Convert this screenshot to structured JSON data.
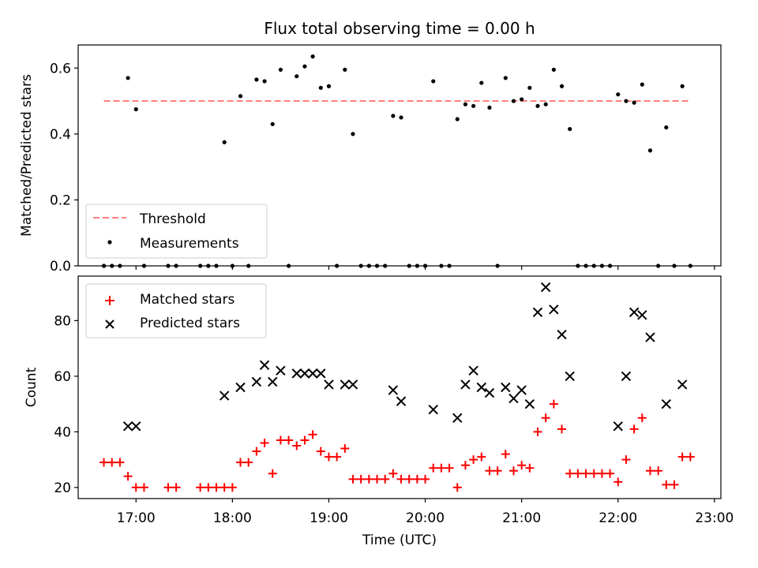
{
  "figure": {
    "title": "Flux total observing time = 0.00 h"
  },
  "chart_data": [
    {
      "type": "scatter",
      "ylabel": "Matched/Predicted stars",
      "xlim": [
        "16:24",
        "23:04"
      ],
      "ylim": [
        0,
        0.67
      ],
      "yticks": [
        "0.0",
        "0.2",
        "0.4",
        "0.6"
      ],
      "legend": {
        "placement": "lower-left",
        "entries": [
          "Threshold",
          "Measurements"
        ]
      },
      "threshold": {
        "name": "Threshold",
        "value": 0.5,
        "x_start": "16:40",
        "x_end": "22:45",
        "color": "#ff7f7f",
        "style": "dashed"
      },
      "series": [
        {
          "name": "Measurements",
          "color": "#000000",
          "marker": "dot",
          "points": [
            [
              "16:40",
              0
            ],
            [
              "16:45",
              0
            ],
            [
              "16:50",
              0
            ],
            [
              "16:55",
              0.57
            ],
            [
              "17:00",
              0.475
            ],
            [
              "17:05",
              0
            ],
            [
              "17:20",
              0
            ],
            [
              "17:25",
              0
            ],
            [
              "17:40",
              0
            ],
            [
              "17:45",
              0
            ],
            [
              "17:50",
              0
            ],
            [
              "17:55",
              0.375
            ],
            [
              "18:00",
              0
            ],
            [
              "18:05",
              0.515
            ],
            [
              "18:10",
              0
            ],
            [
              "18:15",
              0.565
            ],
            [
              "18:20",
              0.56
            ],
            [
              "18:25",
              0.43
            ],
            [
              "18:30",
              0.595
            ],
            [
              "18:35",
              0
            ],
            [
              "18:40",
              0.575
            ],
            [
              "18:45",
              0.605
            ],
            [
              "18:50",
              0.635
            ],
            [
              "18:55",
              0.54
            ],
            [
              "19:00",
              0.545
            ],
            [
              "19:05",
              0
            ],
            [
              "19:10",
              0.595
            ],
            [
              "19:15",
              0.4
            ],
            [
              "19:20",
              0
            ],
            [
              "19:25",
              0
            ],
            [
              "19:30",
              0
            ],
            [
              "19:35",
              0
            ],
            [
              "19:40",
              0.455
            ],
            [
              "19:45",
              0.45
            ],
            [
              "19:50",
              0
            ],
            [
              "19:55",
              0
            ],
            [
              "20:00",
              0
            ],
            [
              "20:05",
              0.56
            ],
            [
              "20:10",
              0
            ],
            [
              "20:15",
              0
            ],
            [
              "20:20",
              0.445
            ],
            [
              "20:25",
              0.49
            ],
            [
              "20:30",
              0.485
            ],
            [
              "20:35",
              0.555
            ],
            [
              "20:40",
              0.48
            ],
            [
              "20:45",
              0
            ],
            [
              "20:50",
              0.57
            ],
            [
              "20:55",
              0.5
            ],
            [
              "21:00",
              0.505
            ],
            [
              "21:05",
              0.54
            ],
            [
              "21:10",
              0.485
            ],
            [
              "21:15",
              0.49
            ],
            [
              "21:20",
              0.595
            ],
            [
              "21:25",
              0.545
            ],
            [
              "21:30",
              0.415
            ],
            [
              "21:35",
              0
            ],
            [
              "21:40",
              0
            ],
            [
              "21:45",
              0
            ],
            [
              "21:50",
              0
            ],
            [
              "21:55",
              0
            ],
            [
              "22:00",
              0.52
            ],
            [
              "22:05",
              0.5
            ],
            [
              "22:10",
              0.495
            ],
            [
              "22:15",
              0.55
            ],
            [
              "22:20",
              0.35
            ],
            [
              "22:25",
              0
            ],
            [
              "22:30",
              0.42
            ],
            [
              "22:35",
              0
            ],
            [
              "22:40",
              0.545
            ],
            [
              "22:45",
              0
            ]
          ]
        }
      ]
    },
    {
      "type": "scatter",
      "xlabel": "Time (UTC)",
      "ylabel": "Count",
      "xlim": [
        "16:24",
        "23:04"
      ],
      "ylim": [
        16,
        96
      ],
      "xticks": [
        "17:00",
        "18:00",
        "19:00",
        "20:00",
        "21:00",
        "22:00",
        "23:00"
      ],
      "yticks": [
        "20",
        "40",
        "60",
        "80"
      ],
      "legend": {
        "placement": "upper-left",
        "entries": [
          "Matched stars",
          "Predicted stars"
        ]
      },
      "series": [
        {
          "name": "Matched stars",
          "color": "#ff0000",
          "marker": "plus",
          "points": [
            [
              "16:40",
              29
            ],
            [
              "16:45",
              29
            ],
            [
              "16:50",
              29
            ],
            [
              "16:55",
              24
            ],
            [
              "17:00",
              20
            ],
            [
              "17:05",
              20
            ],
            [
              "17:20",
              20
            ],
            [
              "17:25",
              20
            ],
            [
              "17:40",
              20
            ],
            [
              "17:45",
              20
            ],
            [
              "17:50",
              20
            ],
            [
              "17:55",
              20
            ],
            [
              "18:00",
              20
            ],
            [
              "18:05",
              29
            ],
            [
              "18:10",
              29
            ],
            [
              "18:15",
              33
            ],
            [
              "18:20",
              36
            ],
            [
              "18:25",
              25
            ],
            [
              "18:30",
              37
            ],
            [
              "18:35",
              37
            ],
            [
              "18:40",
              35
            ],
            [
              "18:45",
              37
            ],
            [
              "18:50",
              39
            ],
            [
              "18:55",
              33
            ],
            [
              "19:00",
              31
            ],
            [
              "19:05",
              31
            ],
            [
              "19:10",
              34
            ],
            [
              "19:15",
              23
            ],
            [
              "19:20",
              23
            ],
            [
              "19:25",
              23
            ],
            [
              "19:30",
              23
            ],
            [
              "19:35",
              23
            ],
            [
              "19:40",
              25
            ],
            [
              "19:45",
              23
            ],
            [
              "19:50",
              23
            ],
            [
              "19:55",
              23
            ],
            [
              "20:00",
              23
            ],
            [
              "20:05",
              27
            ],
            [
              "20:10",
              27
            ],
            [
              "20:15",
              27
            ],
            [
              "20:20",
              20
            ],
            [
              "20:25",
              28
            ],
            [
              "20:30",
              30
            ],
            [
              "20:35",
              31
            ],
            [
              "20:40",
              26
            ],
            [
              "20:45",
              26
            ],
            [
              "20:50",
              32
            ],
            [
              "20:55",
              26
            ],
            [
              "21:00",
              28
            ],
            [
              "21:05",
              27
            ],
            [
              "21:10",
              40
            ],
            [
              "21:15",
              45
            ],
            [
              "21:20",
              50
            ],
            [
              "21:25",
              41
            ],
            [
              "21:30",
              25
            ],
            [
              "21:35",
              25
            ],
            [
              "21:40",
              25
            ],
            [
              "21:45",
              25
            ],
            [
              "21:50",
              25
            ],
            [
              "21:55",
              25
            ],
            [
              "22:00",
              22
            ],
            [
              "22:05",
              30
            ],
            [
              "22:10",
              41
            ],
            [
              "22:15",
              45
            ],
            [
              "22:20",
              26
            ],
            [
              "22:25",
              26
            ],
            [
              "22:30",
              21
            ],
            [
              "22:35",
              21
            ],
            [
              "22:40",
              31
            ],
            [
              "22:45",
              31
            ]
          ]
        },
        {
          "name": "Predicted stars",
          "color": "#000000",
          "marker": "x",
          "points": [
            [
              "16:55",
              42
            ],
            [
              "17:00",
              42
            ],
            [
              "17:55",
              53
            ],
            [
              "18:05",
              56
            ],
            [
              "18:15",
              58
            ],
            [
              "18:20",
              64
            ],
            [
              "18:25",
              58
            ],
            [
              "18:30",
              62
            ],
            [
              "18:40",
              61
            ],
            [
              "18:45",
              61
            ],
            [
              "18:50",
              61
            ],
            [
              "18:55",
              61
            ],
            [
              "19:00",
              57
            ],
            [
              "19:10",
              57
            ],
            [
              "19:15",
              57
            ],
            [
              "19:40",
              55
            ],
            [
              "19:45",
              51
            ],
            [
              "20:05",
              48
            ],
            [
              "20:20",
              45
            ],
            [
              "20:25",
              57
            ],
            [
              "20:30",
              62
            ],
            [
              "20:35",
              56
            ],
            [
              "20:40",
              54
            ],
            [
              "20:50",
              56
            ],
            [
              "20:55",
              52
            ],
            [
              "21:00",
              55
            ],
            [
              "21:05",
              50
            ],
            [
              "21:10",
              83
            ],
            [
              "21:15",
              92
            ],
            [
              "21:20",
              84
            ],
            [
              "21:25",
              75
            ],
            [
              "21:30",
              60
            ],
            [
              "22:00",
              42
            ],
            [
              "22:05",
              60
            ],
            [
              "22:10",
              83
            ],
            [
              "22:15",
              82
            ],
            [
              "22:20",
              74
            ],
            [
              "22:30",
              50
            ],
            [
              "22:40",
              57
            ]
          ]
        }
      ]
    }
  ]
}
